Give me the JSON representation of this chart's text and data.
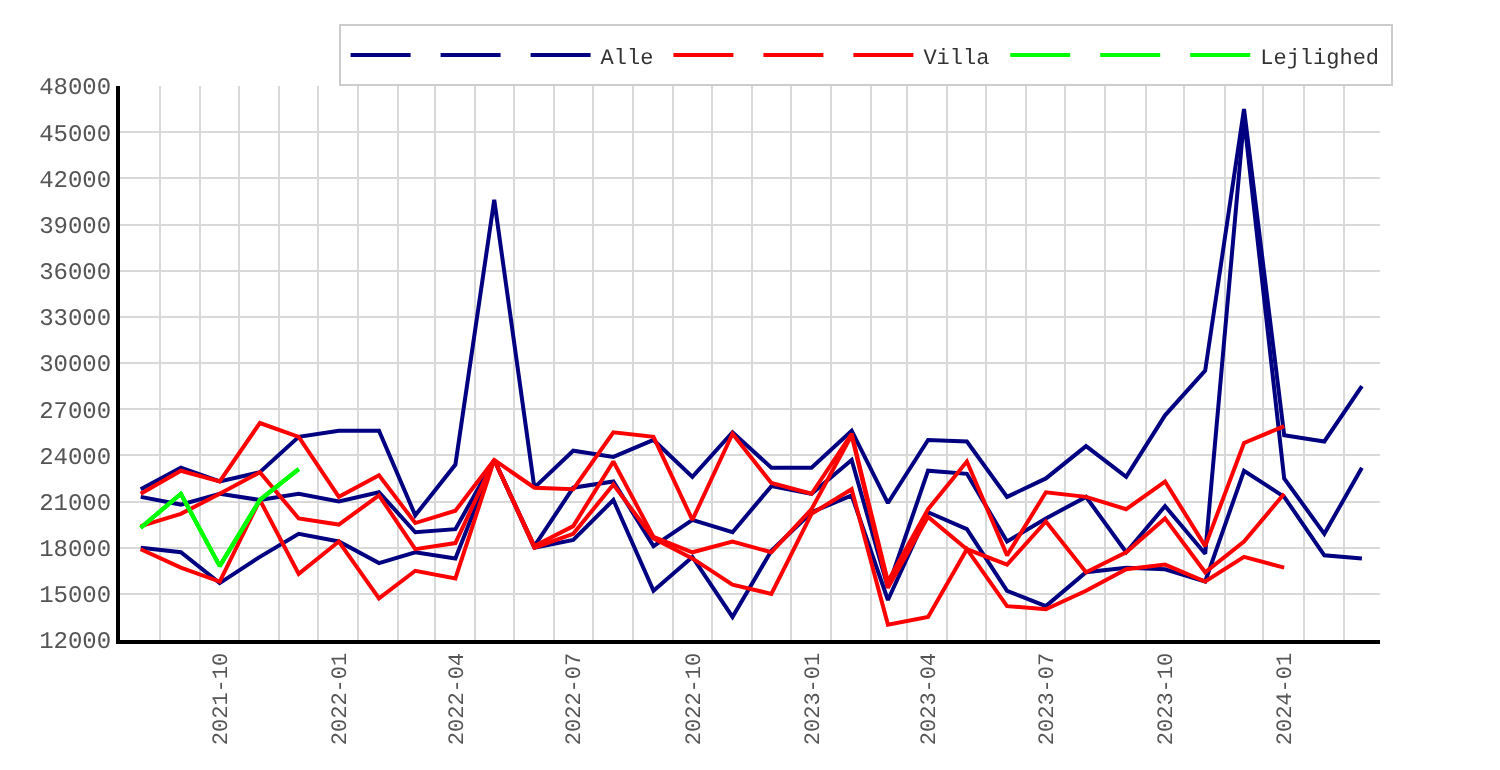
{
  "chart_data": {
    "type": "line",
    "x": [
      "2021-08",
      "2021-09",
      "2021-10",
      "2021-11",
      "2021-12",
      "2022-01",
      "2022-02",
      "2022-03",
      "2022-04",
      "2022-05",
      "2022-06",
      "2022-07",
      "2022-08",
      "2022-09",
      "2022-10",
      "2022-11",
      "2022-12",
      "2023-01",
      "2023-02",
      "2023-03",
      "2023-04",
      "2023-05",
      "2023-06",
      "2023-07",
      "2023-08",
      "2023-09",
      "2023-10",
      "2023-11",
      "2023-12",
      "2024-01",
      "2024-02",
      "2024-03"
    ],
    "series": [
      {
        "color": "#000080",
        "values": [
          21800,
          23200,
          22300,
          22900,
          25200,
          25600,
          25600,
          20100,
          23400,
          40600,
          21900,
          24300,
          23900,
          25000,
          22600,
          25500,
          23200,
          23200,
          25600,
          20900,
          25000,
          24900,
          21300,
          22500,
          24600,
          22600,
          26600,
          29500,
          46500,
          25300,
          24900,
          28500
        ]
      },
      {
        "color": "#000080",
        "values": [
          21300,
          20800,
          21500,
          21100,
          21500,
          21000,
          21600,
          19000,
          19200,
          23700,
          18100,
          21900,
          22300,
          18100,
          19800,
          19000,
          22000,
          21500,
          23700,
          15400,
          23000,
          22800,
          18400,
          19900,
          21300,
          17700,
          20700,
          17600,
          45900,
          22500,
          18900,
          23200
        ]
      },
      {
        "name": "Alle",
        "color": "#000080",
        "values": [
          18000,
          17700,
          15700,
          17400,
          18900,
          18400,
          17000,
          17700,
          17300,
          23700,
          18000,
          18500,
          21100,
          15200,
          17400,
          13500,
          17800,
          20300,
          21400,
          14600,
          20300,
          19200,
          15200,
          14200,
          16400,
          16700,
          16600,
          15800,
          23000,
          21300,
          17500,
          17300
        ]
      },
      {
        "color": "#ff0000",
        "values": [
          21500,
          23000,
          22300,
          26100,
          25200,
          21300,
          22700,
          19600,
          20400,
          23700,
          21900,
          21800,
          25500,
          25200,
          19800,
          25400,
          22200,
          21500,
          25400,
          15800,
          20500,
          23600,
          17500,
          21600,
          21300,
          20500,
          22300,
          18100,
          24800,
          25900,
          null,
          null
        ]
      },
      {
        "color": "#ff0000",
        "values": [
          19400,
          20200,
          21500,
          22900,
          19900,
          19500,
          21400,
          17900,
          18300,
          23700,
          18100,
          19400,
          23600,
          18700,
          17700,
          18400,
          17700,
          20500,
          25300,
          15400,
          20000,
          17900,
          16900,
          19700,
          16400,
          17700,
          19900,
          16400,
          18400,
          21500,
          null,
          null
        ]
      },
      {
        "name": "Villa",
        "color": "#ff0000",
        "values": [
          17900,
          16700,
          15800,
          21100,
          16300,
          18400,
          14700,
          16500,
          16000,
          23700,
          18000,
          18900,
          22100,
          18600,
          17300,
          15600,
          15000,
          20200,
          21800,
          13000,
          13500,
          17900,
          14200,
          14000,
          15200,
          16600,
          16900,
          15800,
          17400,
          16700,
          null,
          null
        ]
      },
      {
        "color": "#00ff00",
        "values": [
          19300,
          21500,
          16800,
          21100,
          23100,
          null,
          null,
          null,
          null,
          null,
          null,
          null,
          null,
          null,
          null,
          null,
          null,
          null,
          null,
          null,
          null,
          null,
          null,
          null,
          null,
          null,
          null,
          null,
          null,
          null,
          null,
          null
        ]
      },
      {
        "color": "#00ff00",
        "values": [
          19300,
          21500,
          16800,
          21100,
          23100,
          null,
          null,
          null,
          null,
          null,
          null,
          null,
          null,
          null,
          null,
          null,
          null,
          null,
          null,
          null,
          null,
          null,
          null,
          null,
          null,
          null,
          null,
          null,
          null,
          null,
          null,
          null
        ]
      },
      {
        "name": "Lejlighed",
        "color": "#00ff00",
        "values": [
          19300,
          21500,
          16800,
          21100,
          23100,
          null,
          null,
          null,
          null,
          null,
          null,
          null,
          null,
          null,
          null,
          null,
          null,
          null,
          null,
          null,
          null,
          null,
          null,
          null,
          null,
          null,
          null,
          null,
          null,
          null,
          null,
          null
        ]
      }
    ],
    "xlim": [
      "2021-07-16",
      "2024-03-15"
    ],
    "xticks": [
      "2021-10",
      "2022-01",
      "2022-04",
      "2022-07",
      "2022-10",
      "2023-01",
      "2023-04",
      "2023-07",
      "2023-10",
      "2024-01"
    ],
    "ylim": [
      12000,
      48000
    ],
    "yticks": [
      12000,
      15000,
      18000,
      21000,
      24000,
      27000,
      30000,
      33000,
      36000,
      39000,
      42000,
      45000,
      48000
    ],
    "grid": true,
    "legend": "top right",
    "marker": "none",
    "line_style": "solid"
  }
}
